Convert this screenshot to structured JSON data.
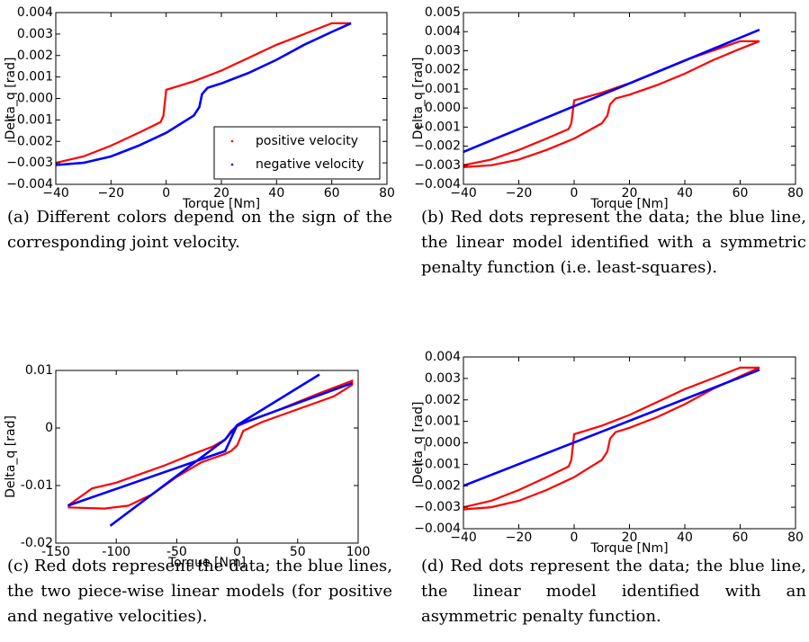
{
  "chart_data": [
    {
      "type": "line",
      "caption": "(a) Different colors depend on the sign of the corresponding joint velocity.",
      "x_label": "Torque [Nm]",
      "y_label": "Delta_q [rad]",
      "legend": "lower right",
      "xlim": [
        -40,
        80
      ],
      "ylim": [
        -0.004,
        0.004
      ],
      "xticks": [
        {
          "value": -40,
          "label": "−40"
        },
        {
          "value": -20,
          "label": "−20"
        },
        0,
        20,
        40,
        60,
        80
      ],
      "yticks": [
        {
          "value": -0.004,
          "label": "−0.004"
        },
        {
          "value": -0.003,
          "label": "−0.003"
        },
        {
          "value": -0.002,
          "label": "−0.002"
        },
        {
          "value": -0.001,
          "label": "−0.001"
        },
        {
          "value": 0,
          "label": "0.000"
        },
        0.001,
        0.002,
        0.003,
        0.004
      ],
      "series": [
        {
          "name": "positive velocity",
          "color": "#ff0000",
          "x": [
            -40,
            -30,
            -20,
            -10,
            -2,
            -1,
            0,
            5,
            10,
            20,
            30,
            40,
            50,
            60,
            67
          ],
          "values": [
            -0.003,
            -0.0027,
            -0.0022,
            -0.0016,
            -0.0011,
            -0.0008,
            0.0004,
            0.0006,
            0.0008,
            0.0013,
            0.0019,
            0.0025,
            0.003,
            0.0035,
            0.0035
          ]
        },
        {
          "name": "negative velocity",
          "color": "#0000ff",
          "x": [
            67,
            60,
            50,
            40,
            30,
            20,
            15,
            13,
            12,
            10,
            5,
            0,
            -10,
            -20,
            -30,
            -40
          ],
          "values": [
            0.0035,
            0.0031,
            0.0025,
            0.0018,
            0.0012,
            0.0007,
            0.0005,
            0.0002,
            -0.0004,
            -0.0008,
            -0.0012,
            -0.0016,
            -0.0022,
            -0.0027,
            -0.003,
            -0.0031
          ]
        }
      ]
    },
    {
      "type": "line",
      "caption": "(b) Red dots represent the data; the blue line, the linear model identified with a symmetric penalty function (i.e. least-squares).",
      "x_label": "Torque [Nm]",
      "y_label": "Delta_q [rad]",
      "xlim": [
        -40,
        80
      ],
      "ylim": [
        -0.004,
        0.005
      ],
      "xticks": [
        {
          "value": -40,
          "label": "−40"
        },
        {
          "value": -20,
          "label": "−20"
        },
        0,
        20,
        40,
        60,
        80
      ],
      "yticks": [
        {
          "value": -0.004,
          "label": "−0.004"
        },
        {
          "value": -0.003,
          "label": "−0.003"
        },
        {
          "value": -0.002,
          "label": "−0.002"
        },
        {
          "value": -0.001,
          "label": "−0.001"
        },
        {
          "value": 0,
          "label": "0.000"
        },
        0.001,
        0.002,
        0.003,
        0.004,
        0.005
      ],
      "series": [
        {
          "color": "#ff0000",
          "x": [
            -40,
            -30,
            -20,
            -10,
            -2,
            -1,
            0,
            5,
            10,
            20,
            30,
            40,
            50,
            60,
            67,
            60,
            50,
            40,
            30,
            20,
            15,
            13,
            12,
            10,
            5,
            0,
            -10,
            -20,
            -30,
            -40
          ],
          "values": [
            -0.003,
            -0.0027,
            -0.0022,
            -0.0016,
            -0.0011,
            -0.0008,
            0.0004,
            0.0006,
            0.0008,
            0.0013,
            0.0019,
            0.0025,
            0.003,
            0.0035,
            0.0035,
            0.0031,
            0.0025,
            0.0018,
            0.0012,
            0.0007,
            0.0005,
            0.0002,
            -0.0004,
            -0.0008,
            -0.0012,
            -0.0016,
            -0.0022,
            -0.0027,
            -0.003,
            -0.0031
          ]
        },
        {
          "color": "#0000ff",
          "x": [
            -40,
            67
          ],
          "values": [
            -0.0023,
            0.0041
          ]
        }
      ]
    },
    {
      "type": "line",
      "caption": "(c) Red dots represent the data; the blue lines, the two piece-wise linear models (for positive and negative velocities).",
      "x_label": "Torque [Nm]",
      "y_label": "Delta_q [rad]",
      "xlim": [
        -150,
        100
      ],
      "ylim": [
        -0.02,
        0.01
      ],
      "xticks": [
        -150,
        -100,
        -50,
        0,
        50,
        100
      ],
      "yticks": [
        -0.02,
        -0.01,
        0,
        0.01
      ],
      "series": [
        {
          "color": "#ff0000",
          "x": [
            -140,
            -120,
            -100,
            -80,
            -60,
            -40,
            -20,
            -10,
            -5,
            0,
            10,
            30,
            50,
            70,
            95,
            95,
            80,
            60,
            40,
            20,
            5,
            0,
            -5,
            -10,
            -30,
            -50,
            -70,
            -90,
            -110,
            -140
          ],
          "values": [
            -0.0135,
            -0.0105,
            -0.0095,
            -0.008,
            -0.0065,
            -0.0048,
            -0.0032,
            -0.002,
            -0.0005,
            0.0003,
            0.0012,
            0.0028,
            0.0045,
            0.0062,
            0.0082,
            0.0075,
            0.0055,
            0.004,
            0.0025,
            0.001,
            -0.0005,
            -0.003,
            -0.004,
            -0.0045,
            -0.006,
            -0.0085,
            -0.0115,
            -0.0135,
            -0.014,
            -0.0138
          ]
        },
        {
          "color": "#0000ff",
          "x": [
            -140,
            -10,
            0,
            95
          ],
          "values": [
            -0.0135,
            -0.004,
            0.0005,
            0.0078
          ]
        },
        {
          "color": "#0000ff",
          "x": [
            -105,
            -10,
            0,
            68
          ],
          "values": [
            -0.017,
            -0.002,
            0.0005,
            0.0093
          ]
        }
      ]
    },
    {
      "type": "line",
      "caption": "(d) Red dots represent the data; the blue line, the linear model identified with an asymmetric penalty function.",
      "x_label": "Torque [Nm]",
      "y_label": "Delta_q [rad]",
      "xlim": [
        -40,
        80
      ],
      "ylim": [
        -0.004,
        0.004
      ],
      "xticks": [
        {
          "value": -40,
          "label": "−40"
        },
        {
          "value": -20,
          "label": "−20"
        },
        0,
        20,
        40,
        60,
        80
      ],
      "yticks": [
        {
          "value": -0.004,
          "label": "−0.004"
        },
        {
          "value": -0.003,
          "label": "−0.003"
        },
        {
          "value": -0.002,
          "label": "−0.002"
        },
        {
          "value": -0.001,
          "label": "−0.001"
        },
        {
          "value": 0,
          "label": "0.000"
        },
        0.001,
        0.002,
        0.003,
        0.004
      ],
      "series": [
        {
          "color": "#ff0000",
          "x": [
            -40,
            -30,
            -20,
            -10,
            -2,
            -1,
            0,
            5,
            10,
            20,
            30,
            40,
            50,
            60,
            67,
            60,
            50,
            40,
            30,
            20,
            15,
            13,
            12,
            10,
            5,
            0,
            -10,
            -20,
            -30,
            -40
          ],
          "values": [
            -0.003,
            -0.0027,
            -0.0022,
            -0.0016,
            -0.0011,
            -0.0008,
            0.0004,
            0.0006,
            0.0008,
            0.0013,
            0.0019,
            0.0025,
            0.003,
            0.0035,
            0.0035,
            0.0031,
            0.0025,
            0.0018,
            0.0012,
            0.0007,
            0.0005,
            0.0002,
            -0.0004,
            -0.0008,
            -0.0012,
            -0.0016,
            -0.0022,
            -0.0027,
            -0.003,
            -0.0031
          ]
        },
        {
          "color": "#0000ff",
          "x": [
            -40,
            67
          ],
          "values": [
            -0.002,
            0.0034
          ]
        }
      ]
    }
  ]
}
